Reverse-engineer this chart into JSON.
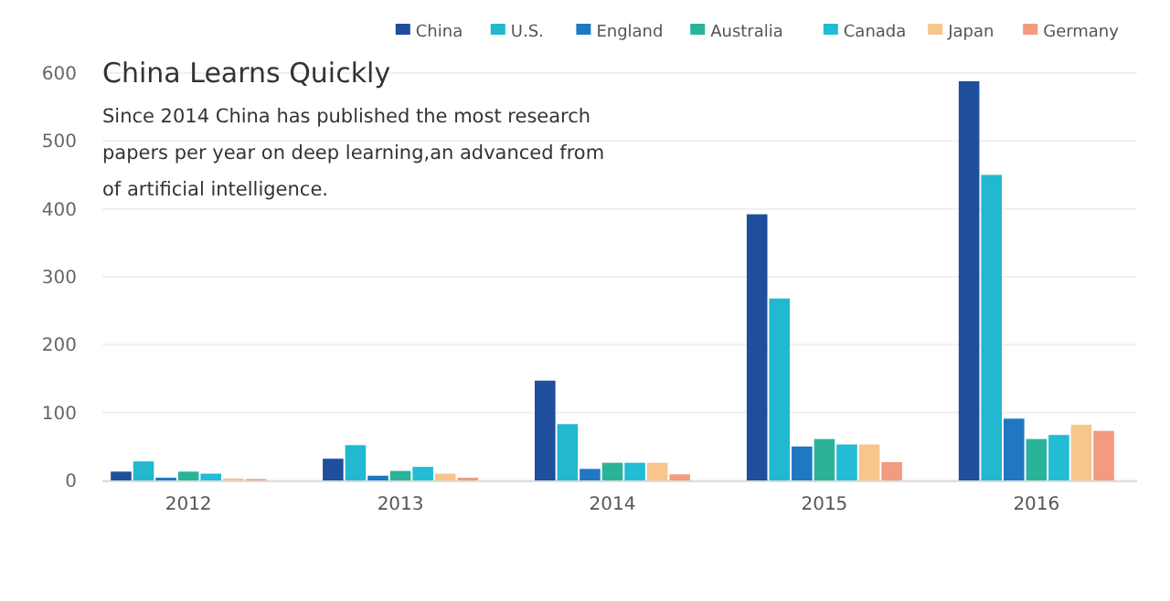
{
  "chart_data": {
    "type": "bar",
    "title": "China Learns Quickly",
    "subtitle": "Since 2014 China has published the most research papers per year on deep learning,an advanced from of artificial intelligence.",
    "categories": [
      "2012",
      "2013",
      "2014",
      "2015",
      "2016"
    ],
    "series": [
      {
        "name": "China",
        "color": "#1f4e9c",
        "values": [
          13,
          32,
          147,
          392,
          588
        ]
      },
      {
        "name": "U.S.",
        "color": "#22b8cf",
        "values": [
          28,
          52,
          83,
          268,
          450
        ]
      },
      {
        "name": "England",
        "color": "#1f78c1",
        "values": [
          4,
          7,
          17,
          50,
          91
        ]
      },
      {
        "name": "Australia",
        "color": "#2bb39a",
        "values": [
          13,
          14,
          26,
          61,
          61
        ]
      },
      {
        "name": "Canada",
        "color": "#22bcd4",
        "values": [
          10,
          20,
          26,
          53,
          67
        ]
      },
      {
        "name": "Japan",
        "color": "#f8c58a",
        "values": [
          3,
          10,
          26,
          53,
          82
        ]
      },
      {
        "name": "Germany",
        "color": "#f39a80",
        "values": [
          2,
          4,
          9,
          27,
          73
        ]
      }
    ],
    "ylim": [
      0,
      600
    ],
    "yticks": [
      0,
      100,
      200,
      300,
      400,
      500,
      600
    ],
    "grid": "y",
    "legend": "top right"
  }
}
